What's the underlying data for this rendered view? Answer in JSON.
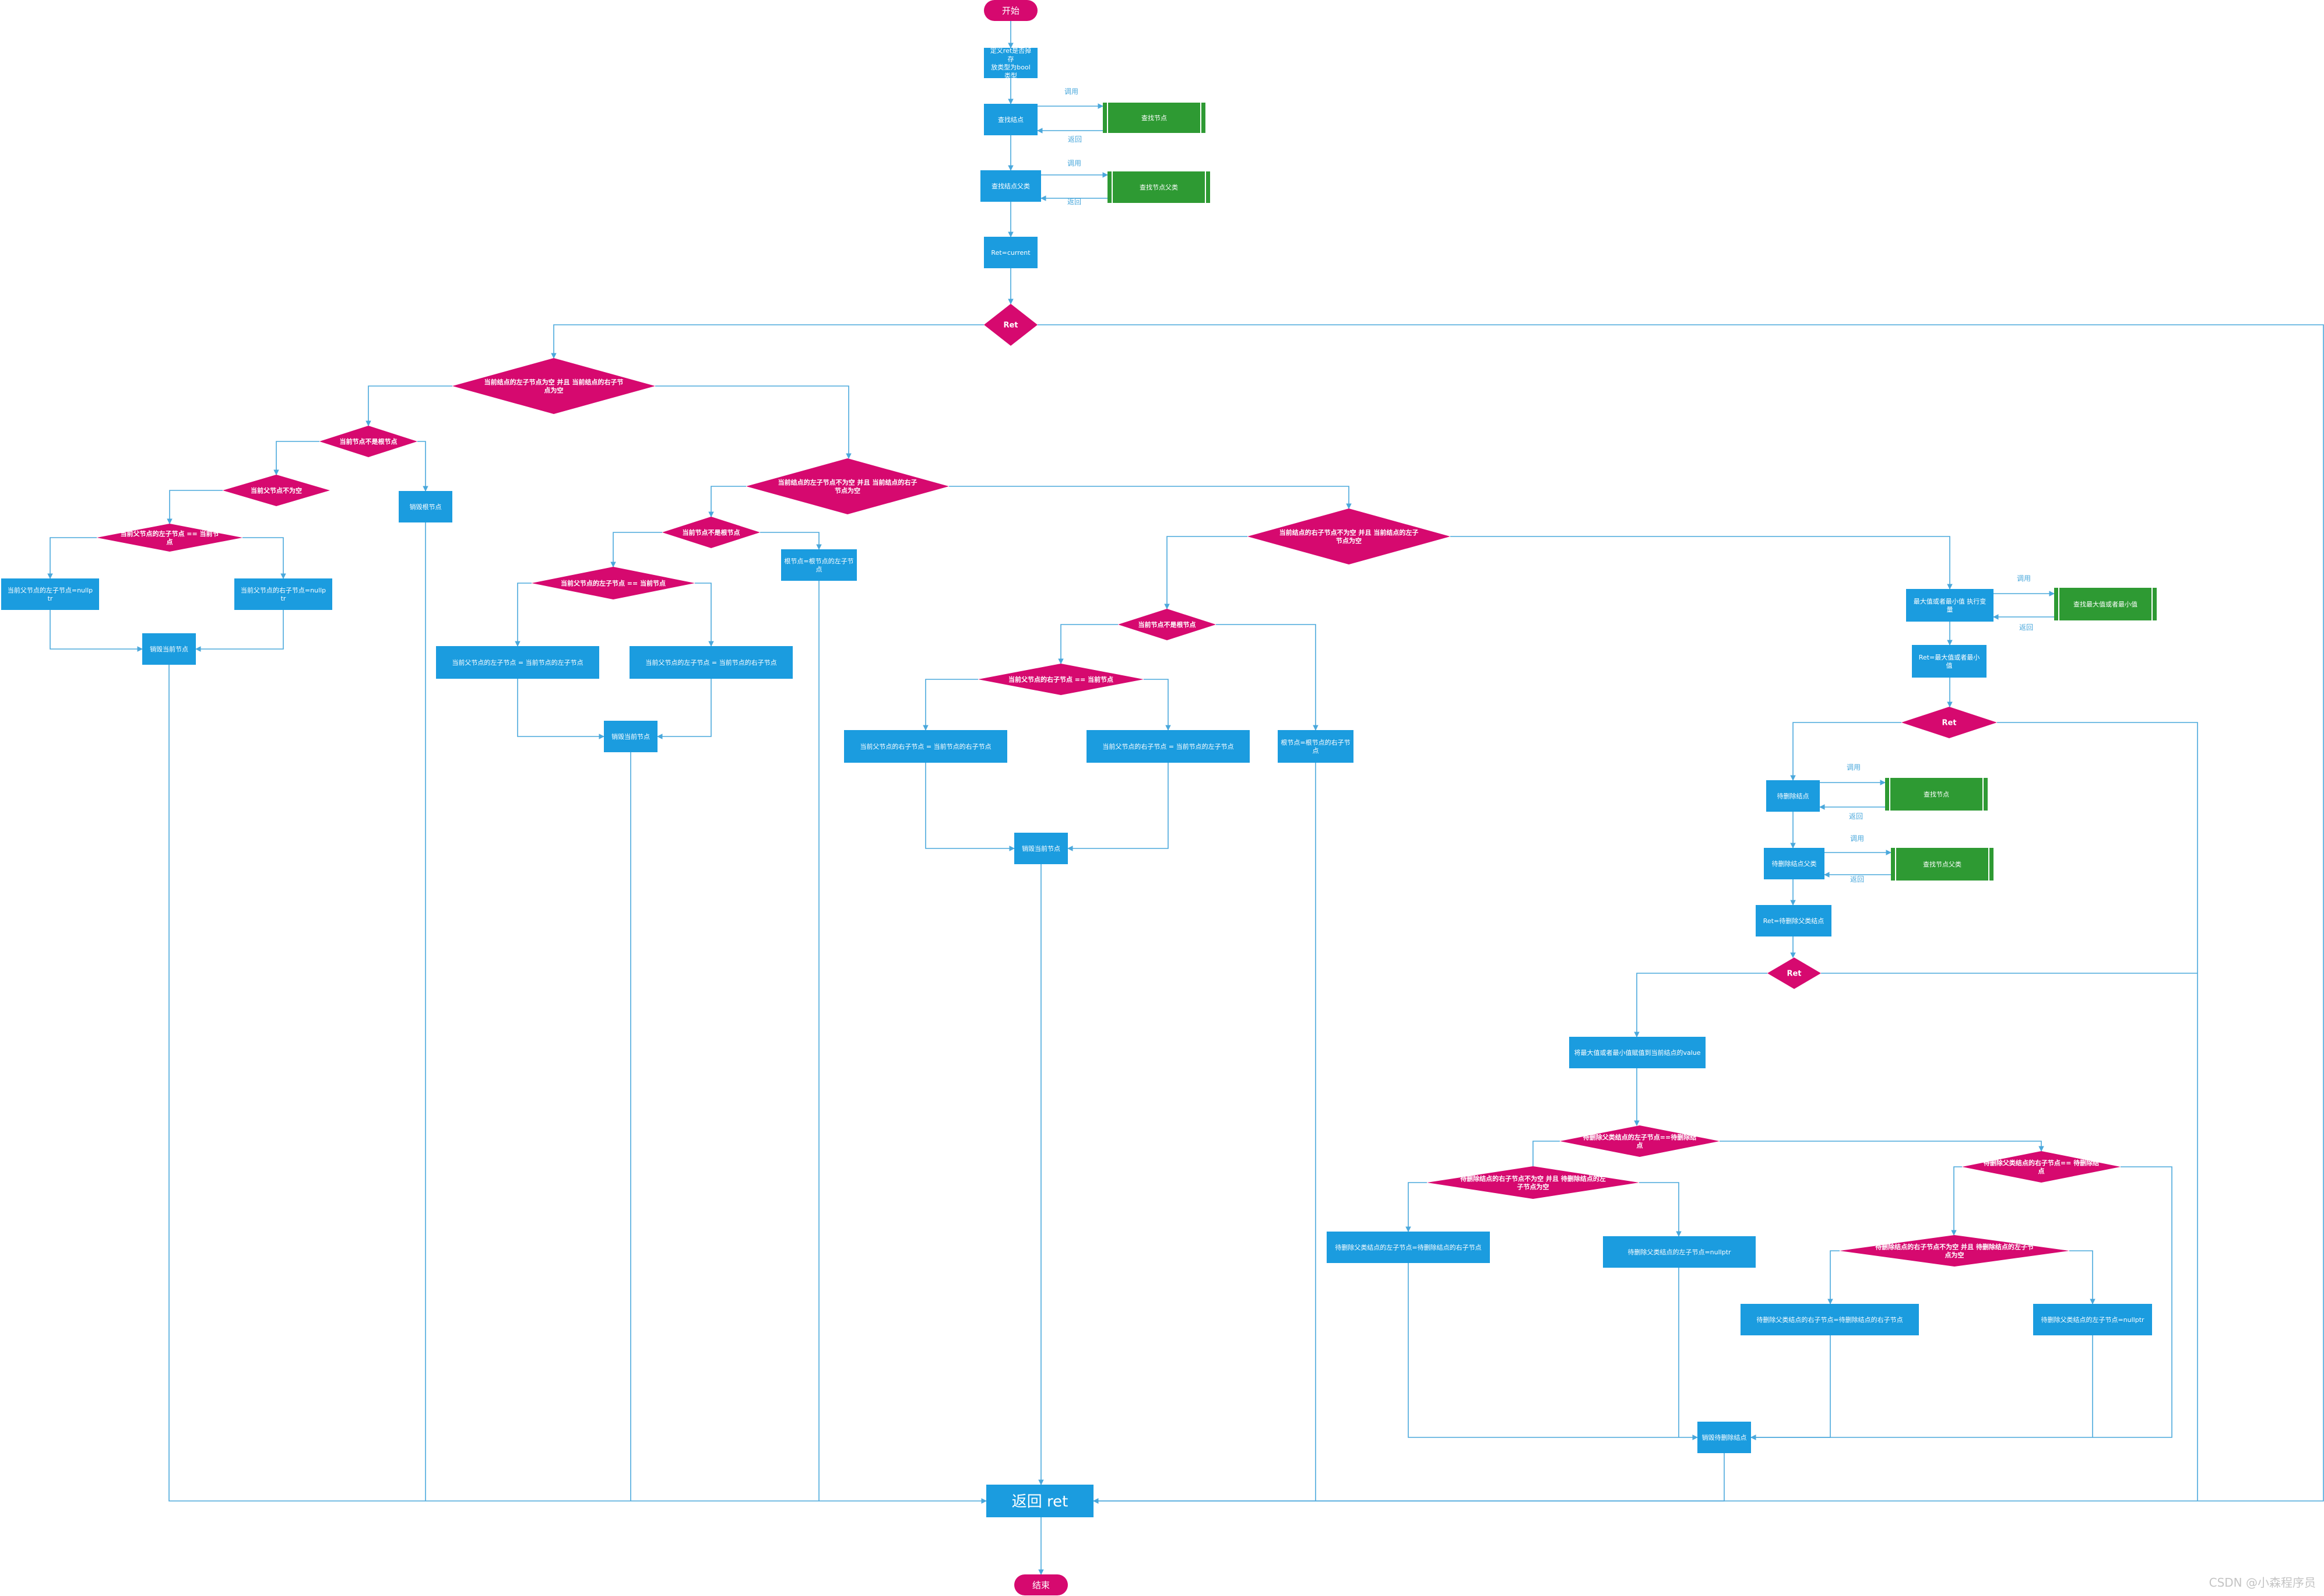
{
  "colors": {
    "process": "#1b9cdf",
    "decision": "#d6096f",
    "terminal": "#d6096f",
    "subprocess": "#2e9a33",
    "line": "#4aa8dc",
    "edge_label": "#4aa8dc"
  },
  "edge_labels": {
    "call": "调用",
    "back": "返回"
  },
  "nodes": {
    "start": "开始",
    "decl": "定义ret是否掉存\n放类型为bool类型",
    "find1": "查找结点",
    "sub_find1": "查找节点",
    "findp1": "查找结点父类",
    "sub_findp1": "查找节点父类",
    "ret_assign": "Ret=current",
    "ret_dec": "Ret",
    "d_both_null": "当前结点的左子节点为空 并且 当前结点的右子节点为空",
    "d_isroot1": "当前节点不是根节点",
    "d_p_notnull": "当前父节点不为空",
    "d_pl_eq": "当前父节点的左子节点 == 当前节点",
    "p_pl_null": "当前父节点的左子节点=nullptr",
    "p_pr_null": "当前父节点的右子节点=nullptr",
    "p_del1": "销毁当前节点",
    "p_del_root1": "销毁根节点",
    "d_left_only": "当前结点的左子节点不为空 并且 当前结点的右子节点为空",
    "d_isroot2": "当前节点不是根节点",
    "p_root_left": "根节点=根节点的左子节点",
    "d_pl_eq2": "当前父节点的左子节点 == 当前节点",
    "p_pl_set_left": "当前父节点的左子节点 = 当前节点的左子节点",
    "p_pr_set_left": "当前父节点的左子节点 = 当前节点的右子节点",
    "p_del2": "销毁当前节点",
    "d_right_only": "当前结点的右子节点不为空 并且 当前结点的左子节点为空",
    "d_isroot3": "当前节点不是根节点",
    "d_pr_eq": "当前父节点的右子节点 == 当前节点",
    "p_pr_set_right": "当前父节点的右子节点 = 当前节点的右子节点",
    "p_pl_set_right": "当前父节点的右子节点 = 当前节点的左子节点",
    "p_root_right": "根节点=根节点的右子节点",
    "p_del3": "销毁当前节点",
    "p_find_max": "最大值或者最小值 执行变量",
    "sub_find_max": "查找最大值或者最小值",
    "p_ret_max": "Ret=最大值或者最小值",
    "d_ret2": "Ret",
    "p_find_del": "待删除结点",
    "sub_find_del": "查找节点",
    "p_findp_del": "待删除结点父类",
    "sub_findp_del": "查找节点父类",
    "p_ret_del": "Ret=待删除父类结点",
    "d_ret3": "Ret",
    "p_swap": "将最大值或者最小值赋值到当前结点的value",
    "d_pdl_eq": "待删除父类结点的左子节点==待删除结点",
    "d_del_left_notnull": "待删除结点的右子节点不为空 并且 待删除结点的左子节点为空",
    "p_set_pl_right": "待删除父类结点的左子节点=待删除结点的右子节点",
    "p_set_pl_null": "待删除父类结点的左子节点=nullptr",
    "d_pdr_eq": "待删除父类结点的右子节点== 待删除结点",
    "d_del_right_notnull": "待删除结点的右子节点不为空 并且 待删除结点的左子节点为空",
    "p_set_pr_right": "待删除父类结点的右子节点=待删除结点的右子节点",
    "p_set_pr_null": "待删除父类结点的左子节点=nullptr",
    "p_destroy_del": "销毁待删除结点",
    "p_return": "返回  ret",
    "end": "结束"
  },
  "watermark": "CSDN @小森程序员"
}
